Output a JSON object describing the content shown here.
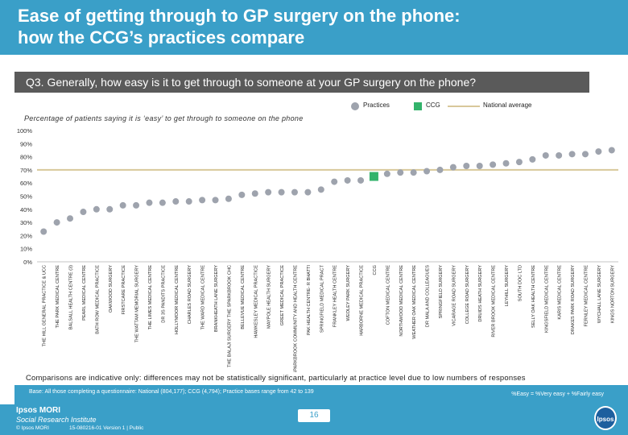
{
  "header": {
    "title": "Ease of getting through to GP surgery on the phone:\nhow the CCG’s practices compare"
  },
  "question": "Q3. Generally, how easy is it to get through to someone at your GP surgery on the phone?",
  "legend": {
    "practices": "Practices",
    "ccg": "CCG",
    "national": "National average"
  },
  "colors": {
    "header": "#3a9fc8",
    "practice_point": "#9ea3ad",
    "ccg_point": "#33b36b",
    "national_line": "#d8c89a"
  },
  "chart_data": {
    "type": "scatter",
    "title": "",
    "subtitle": "Percentage of patients saying it is ‘easy’ to get through to someone on the phone",
    "ylim": [
      0,
      100
    ],
    "y_ticks": [
      "0%",
      "10%",
      "20%",
      "30%",
      "40%",
      "50%",
      "60%",
      "70%",
      "80%",
      "90%",
      "100%"
    ],
    "national_average": 70,
    "ccg_label": "CCG",
    "categories": [
      "THE HILL GENERAL PRACTICE & UCC",
      "THE PARK MEDICAL CENTRE",
      "BALSALL HEALTH CENTRE (3)",
      "PEARL MEDICAL CENTRE",
      "BATH ROW MEDICAL PRACTICE",
      "OAKWOOD SURGERY",
      "FIRSTCARE PRACTICE",
      "THE WATTAM MEMORIAL SURGERY",
      "THE LIMES MEDICAL CENTRE",
      "DR 3S PANDITS PRACTICE",
      "HOLLYMOOR MEDICAL CENTRE",
      "CHARLES ROAD SURGERY",
      "THE WARD MEDICAL CENTRE",
      "BRANKHEATH LANE SURGERY",
      "THE BALAJI SURGERY THE SPARKBROOK CHC",
      "BELLEVUE MEDICAL CENTRE",
      "HAWKESLEY MEDICAL PRACTICE",
      "MAYPOLE HEALTH SURGERY",
      "GREET MEDICAL PRACTICE",
      "SPARKBROOK COMMUNITY AND HEALTH CENTRE",
      "PAK HEALTH CENTRE- R BHATTI",
      "SPRINGFIELD MEDICAL PRACT",
      "FRANKLEY HEALTH CENTRE",
      "WEOLEY PARK SURGERY",
      "HARBORNE MEDICAL PRACTICE",
      "CCG",
      "COFTON MEDICAL CENTRE",
      "NORTHWOOD MEDICAL CENTRE",
      "WEATHER OAK MEDICAL CENTRE",
      "DR MALA AND COLLEAGUES",
      "SPRINGFIELD SURGERY",
      "VICARAGE ROAD SURGERY",
      "COLLEGE ROAD SURGERY",
      "DRUIDS HEATH SURGERY",
      "RIVER BROOK MEDICAL CENTRE",
      "LEYHILL SURGERY",
      "SOUTH DOC LTD",
      "SELLY OAK HEALTH CENTRE",
      "KINGSFIELD MEDICAL CENTRE",
      "KARIS MEDICAL CENTRE",
      "DRAKES PARK ROAD SURGERY",
      "FERNLEY MEDICAL CENTRE",
      "WYCHALL LANE SURGERY",
      "KINGS NORTON SURGERY"
    ],
    "values": [
      23,
      30,
      33,
      38,
      40,
      40,
      43,
      43,
      45,
      45,
      46,
      46,
      47,
      47,
      48,
      51,
      52,
      53,
      53,
      53,
      53,
      55,
      61,
      62,
      62,
      65,
      67,
      68,
      68,
      69,
      70,
      72,
      73,
      73,
      74,
      75,
      76,
      78,
      81,
      81,
      82,
      82,
      84,
      85
    ]
  },
  "comparisons_note": "Comparisons are indicative only: differences may not be statistically significant, particularly at practice level due to low numbers of responses",
  "base_text": "Base: All those completing a questionnaire: National (804,177); CCG (4,794); Practice bases range from 42 to 139",
  "easy_note": "%Easy = %Very easy + %Fairly easy",
  "footer": {
    "logo_main": "Ipsos MORI",
    "logo_sub": "Social Research Institute",
    "copyright": "© Ipsos MORI",
    "ref": "15-080216-01 Version 1 | Public",
    "page": "16",
    "ipsos_badge": "Ipsos"
  }
}
